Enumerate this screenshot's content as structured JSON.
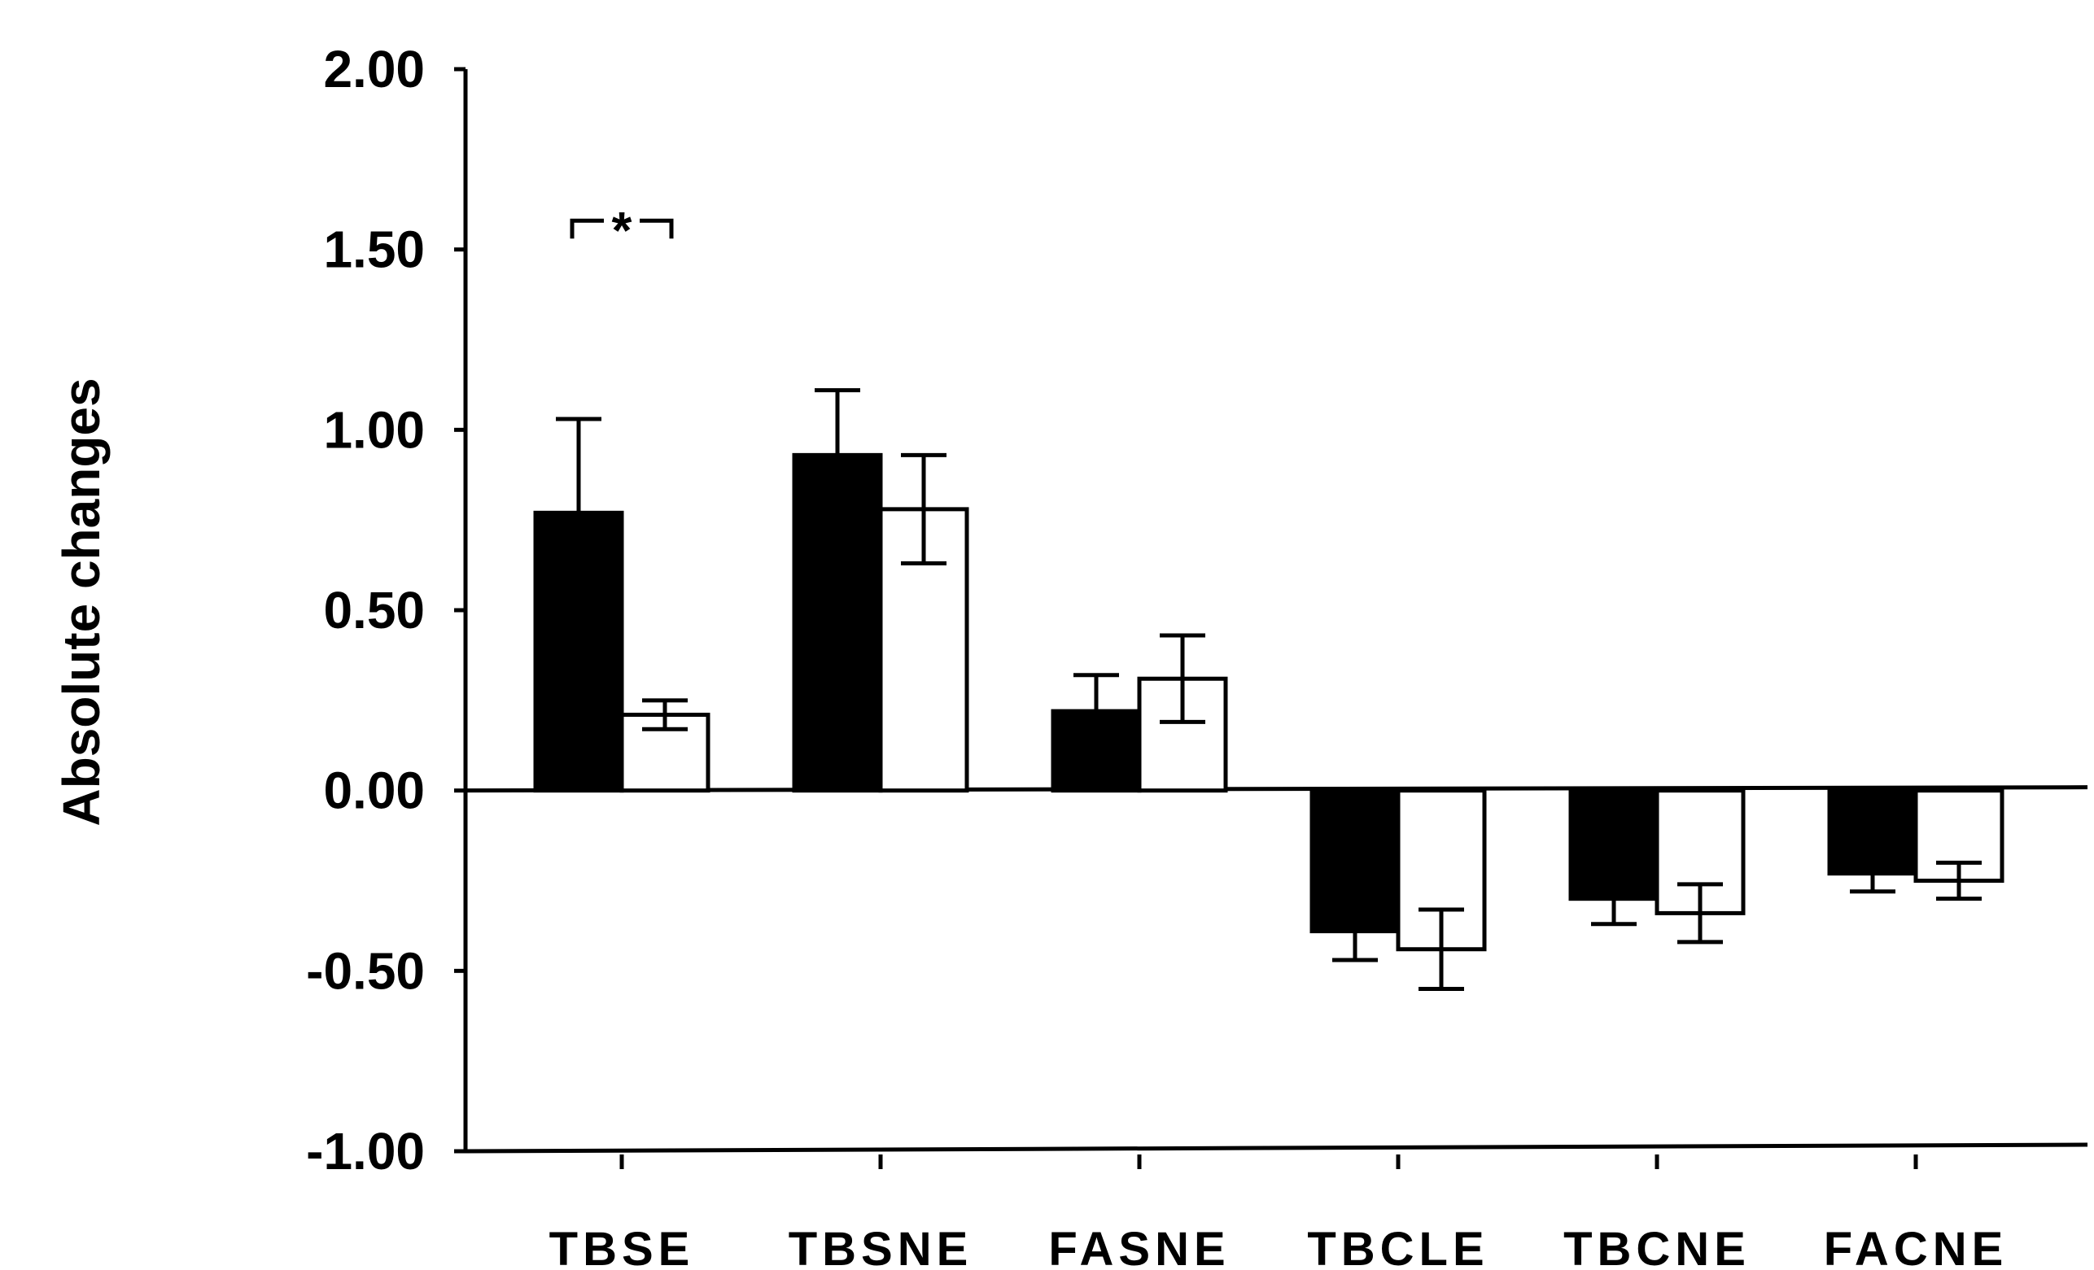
{
  "chart_data": {
    "type": "bar",
    "ylabel": "Absolute changes",
    "xlabel": "",
    "ylim": [
      -1.0,
      2.0
    ],
    "yticks": [
      2.0,
      1.5,
      1.0,
      0.5,
      0.0,
      -0.5,
      -1.0
    ],
    "ytick_labels": [
      "2.00",
      "1.50",
      "1.00",
      "0.50",
      "0.00",
      "-0.50",
      "-1.00"
    ],
    "categories": [
      "TBSE",
      "TBSNE",
      "FASNE",
      "TBCLE",
      "TBCNE",
      "FACNE"
    ],
    "series": [
      {
        "fill": "#000000",
        "values": [
          0.77,
          0.93,
          0.22,
          -0.39,
          -0.3,
          -0.23
        ],
        "errors": [
          0.26,
          0.18,
          0.1,
          0.08,
          0.07,
          0.05
        ]
      },
      {
        "fill": "#ffffff",
        "values": [
          0.21,
          0.78,
          0.31,
          -0.44,
          -0.34,
          -0.25
        ],
        "errors": [
          0.04,
          0.15,
          0.12,
          0.11,
          0.08,
          0.05
        ]
      }
    ],
    "annotations": [
      {
        "category": "TBSE",
        "text": "*",
        "y": 1.58
      }
    ],
    "grid": false,
    "legend": "none"
  }
}
